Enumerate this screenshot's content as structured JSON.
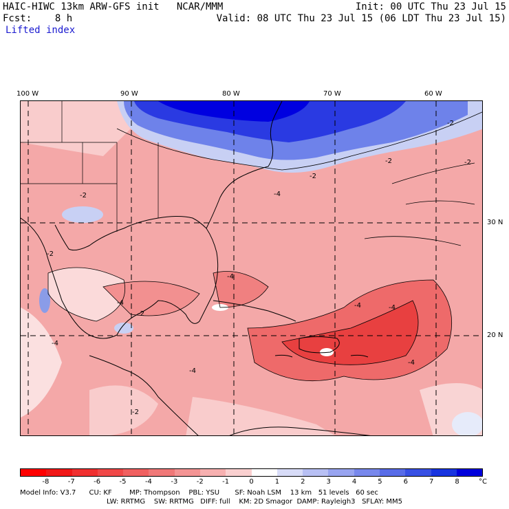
{
  "header": {
    "title": "HAIC-HIWC 13km ARW-GFS init   NCAR/MMM",
    "init": "Init: 00 UTC Thu 23 Jul 15",
    "fcst": "Fcst:    8 h",
    "valid": "Valid: 08 UTC Thu 23 Jul 15 (06 LDT Thu 23 Jul 15)",
    "field": "Lifted index"
  },
  "map": {
    "lon_labels": [
      "100 W",
      "90 W",
      "80 W",
      "70 W",
      "60 W"
    ],
    "lat_labels": [
      "30 N",
      "20 N"
    ],
    "contour_labels": [
      "-2",
      "-2",
      "-2",
      "-2",
      "-2",
      "-2",
      "-4",
      "-4",
      "-4",
      "-4",
      "-4",
      "-4",
      "-4",
      "-4",
      "-2",
      "-2"
    ],
    "colors": {
      "strong_stable": "#0000e0",
      "stable": "#7a8ee8",
      "light_stable": "#dfe6f8",
      "neutral": "#ffffff",
      "light_unstable": "#f8c8c8",
      "unstable": "#f08a8a",
      "very_unstable": "#e84848",
      "extreme_unstable": "#e00000"
    }
  },
  "colorbar": {
    "ticks": [
      "-8",
      "-7",
      "-6",
      "-5",
      "-4",
      "-3",
      "-2",
      "-1",
      "0",
      "1",
      "2",
      "3",
      "4",
      "5",
      "6",
      "7",
      "8"
    ],
    "unit": "°C",
    "colors": [
      "#ff0000",
      "#f01818",
      "#f03030",
      "#f04848",
      "#f06060",
      "#f07878",
      "#f49494",
      "#f7b0b0",
      "#fad0d0",
      "#ffffff",
      "#d8dcf8",
      "#b8c0f4",
      "#98a4f0",
      "#7888ec",
      "#586ce8",
      "#3850e4",
      "#1834e0",
      "#0000dc"
    ]
  },
  "footer": {
    "line1": "Model Info: V3.7      CU: KF        MP: Thompson    PBL: YSU       SF: Noah LSM    13 km   51 levels   60 sec",
    "line2": "LW: RRTMG    SW: RRTMG   DIFF: full    KM: 2D Smagor  DAMP: Rayleigh3   SFLAY: MM5"
  }
}
